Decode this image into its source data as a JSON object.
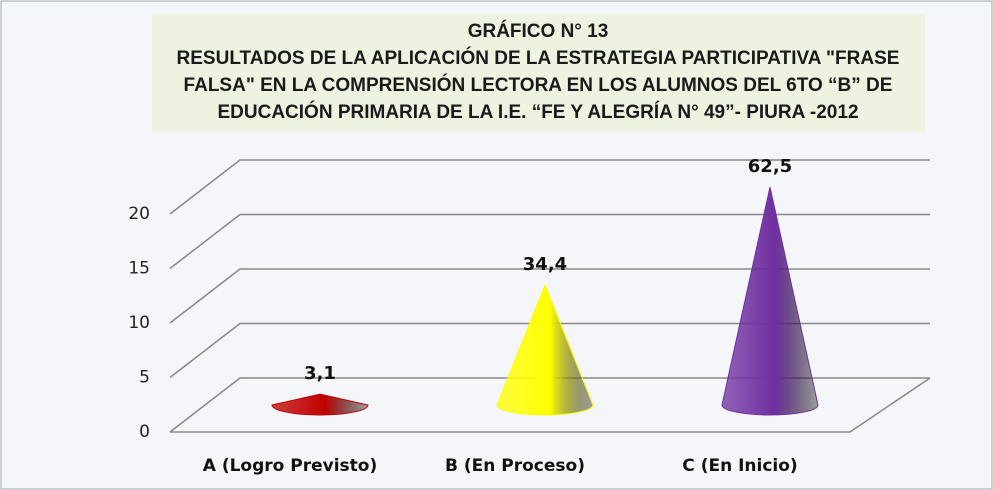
{
  "chart_data": {
    "type": "cone",
    "title": [
      "GRÁFICO N° 13",
      "RESULTADOS DE LA APLICACIÓN DE LA ESTRATEGIA PARTICIPATIVA \"FRASE",
      "FALSA\" EN LA COMPRENSIÓN LECTORA EN LOS ALUMNOS DEL 6TO “B” DE",
      "EDUCACIÓN PRIMARIA DE LA I.E. “FE Y ALEGRÍA N° 49”- PIURA -2012"
    ],
    "categories": [
      "A (Logro Previsto)",
      "B (En Proceso)",
      "C (En Inicio)"
    ],
    "values": [
      1,
      11,
      20
    ],
    "value_labels": [
      "3,1",
      "34,4",
      "62,5"
    ],
    "colors": [
      "#c00000",
      "#ffff00",
      "#7030a0"
    ],
    "ylim": [
      0,
      20
    ],
    "yticks": [
      0,
      5,
      10,
      15,
      20
    ],
    "grid": true
  }
}
